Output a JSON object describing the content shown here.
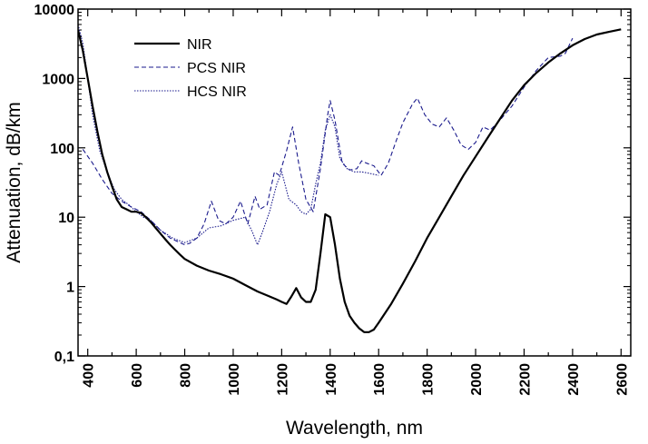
{
  "chart_data": {
    "type": "line",
    "xlabel": "Wavelength, nm",
    "ylabel": "Attenuation, dB/km",
    "xlim": [
      360,
      2640
    ],
    "ylim": [
      0.1,
      10000
    ],
    "yscale": "log",
    "x_ticks": [
      400,
      600,
      800,
      1000,
      1200,
      1400,
      1600,
      1800,
      2000,
      2200,
      2400,
      2600
    ],
    "x_tick_labels": [
      "400",
      "600",
      "800",
      "1000",
      "1200",
      "1400",
      "1600",
      "1800",
      "2000",
      "2200",
      "2400",
      "2600"
    ],
    "y_ticks": [
      0.1,
      1,
      10,
      100,
      1000,
      10000
    ],
    "y_tick_labels": [
      "0,1",
      "1",
      "10",
      "100",
      "1000",
      "10000"
    ],
    "legend_position": "top-left",
    "colors": {
      "nir": "#000000",
      "pcs": "#1a1a8c",
      "hcs": "#1a1a8c"
    },
    "series": [
      {
        "name": "NIR",
        "style": "solid",
        "x": [
          360,
          380,
          400,
          420,
          440,
          460,
          480,
          500,
          520,
          540,
          560,
          580,
          600,
          620,
          640,
          660,
          680,
          700,
          720,
          740,
          760,
          780,
          800,
          850,
          900,
          950,
          1000,
          1050,
          1100,
          1150,
          1180,
          1200,
          1220,
          1240,
          1260,
          1280,
          1300,
          1320,
          1340,
          1360,
          1380,
          1400,
          1420,
          1440,
          1460,
          1480,
          1500,
          1520,
          1540,
          1560,
          1580,
          1600,
          1650,
          1700,
          1750,
          1800,
          1850,
          1900,
          1950,
          2000,
          2050,
          2100,
          2150,
          2200,
          2250,
          2300,
          2350,
          2400,
          2450,
          2500,
          2550,
          2600
        ],
        "y": [
          5000,
          2500,
          1000,
          400,
          170,
          80,
          45,
          28,
          18,
          14,
          13,
          12,
          12,
          11.5,
          10,
          8.5,
          7,
          5.8,
          4.8,
          4,
          3.4,
          2.9,
          2.5,
          2,
          1.7,
          1.5,
          1.3,
          1.05,
          0.85,
          0.72,
          0.65,
          0.6,
          0.56,
          0.72,
          0.95,
          0.7,
          0.6,
          0.6,
          0.9,
          3,
          11,
          10,
          4,
          1.3,
          0.6,
          0.38,
          0.3,
          0.25,
          0.22,
          0.22,
          0.24,
          0.3,
          0.55,
          1.1,
          2.3,
          5,
          10,
          20,
          40,
          75,
          140,
          260,
          480,
          800,
          1200,
          1700,
          2300,
          3000,
          3700,
          4300,
          4700,
          5100
        ]
      },
      {
        "name": "PCS NIR",
        "style": "dashed",
        "x": [
          380,
          420,
          460,
          500,
          540,
          580,
          620,
          660,
          700,
          740,
          780,
          800,
          820,
          850,
          880,
          910,
          940,
          970,
          1000,
          1030,
          1060,
          1090,
          1110,
          1140,
          1170,
          1190,
          1220,
          1245,
          1270,
          1300,
          1330,
          1360,
          1390,
          1400,
          1420,
          1450,
          1480,
          1510,
          1530,
          1550,
          1580,
          1610,
          1640,
          1670,
          1700,
          1740,
          1760,
          1790,
          1820,
          1850,
          1880,
          1910,
          1940,
          1970,
          2000,
          2030,
          2060,
          2100,
          2150,
          2200,
          2250,
          2300,
          2350,
          2370,
          2400
        ],
        "y": [
          95,
          60,
          35,
          22,
          17,
          14,
          12,
          9,
          6.5,
          5,
          4.3,
          4,
          4.2,
          5,
          8,
          17,
          9,
          8,
          10,
          17,
          8,
          20,
          13,
          15,
          45,
          40,
          90,
          200,
          60,
          18,
          12,
          50,
          300,
          480,
          250,
          60,
          48,
          50,
          65,
          60,
          55,
          40,
          60,
          120,
          230,
          430,
          520,
          300,
          220,
          200,
          270,
          180,
          110,
          95,
          120,
          200,
          180,
          250,
          400,
          750,
          1300,
          2000,
          2100,
          2300,
          3800
        ]
      },
      {
        "name": "HCS NIR",
        "style": "dotted",
        "x": [
          360,
          380,
          400,
          420,
          450,
          480,
          510,
          540,
          570,
          600,
          630,
          660,
          700,
          750,
          800,
          850,
          900,
          950,
          1000,
          1050,
          1080,
          1100,
          1120,
          1150,
          1180,
          1200,
          1230,
          1260,
          1280,
          1300,
          1320,
          1340,
          1360,
          1380,
          1400,
          1420,
          1440,
          1470,
          1500,
          1530,
          1560,
          1600
        ],
        "y": [
          6000,
          3200,
          1000,
          300,
          90,
          45,
          25,
          18,
          15,
          12,
          10,
          9,
          6.5,
          5,
          4.3,
          5,
          7,
          7.5,
          9,
          10,
          6,
          4,
          6,
          12,
          30,
          45,
          18,
          15,
          12,
          11,
          13,
          30,
          60,
          180,
          300,
          200,
          70,
          50,
          45,
          45,
          43,
          40
        ]
      }
    ]
  }
}
